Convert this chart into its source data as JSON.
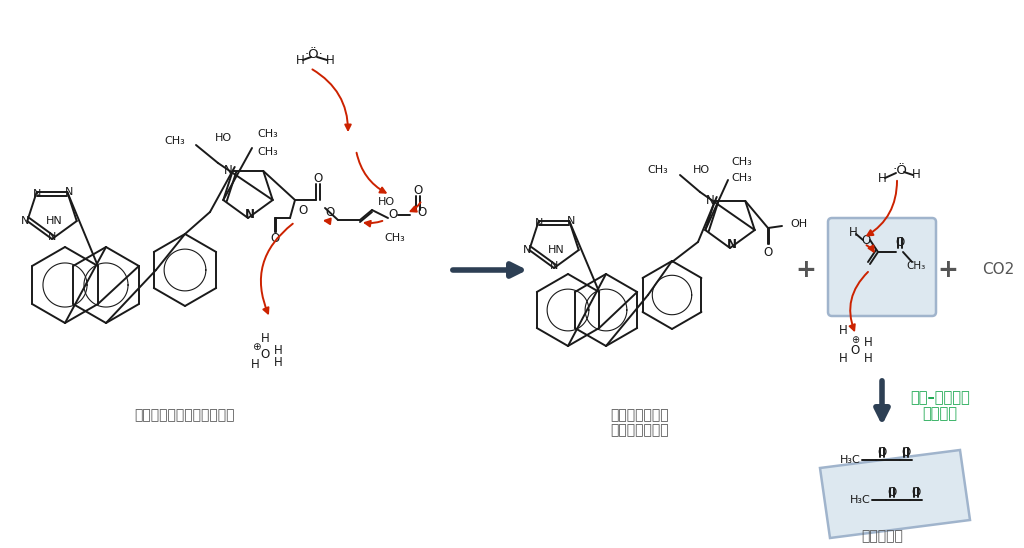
{
  "bg_color": "#ffffff",
  "dark_arrow_color": "#2d3f54",
  "red_color": "#cc2200",
  "green_color": "#22aa55",
  "gray_color": "#555555",
  "black_color": "#1a1a1a",
  "box_edge_color": "#a0b4cc",
  "box_face_color": "#dde8f0",
  "label_intermediate": "オルメサルタン（中間体）",
  "label_active_line1": "オルメサルタン",
  "label_active_line2": "（活性代謝物）",
  "label_diacetyl": "ジアセチル",
  "label_co2": "CO2",
  "label_keto_enol_line1": "ケト–エノール",
  "label_keto_enol_line2": "互変異性",
  "plus": "+"
}
